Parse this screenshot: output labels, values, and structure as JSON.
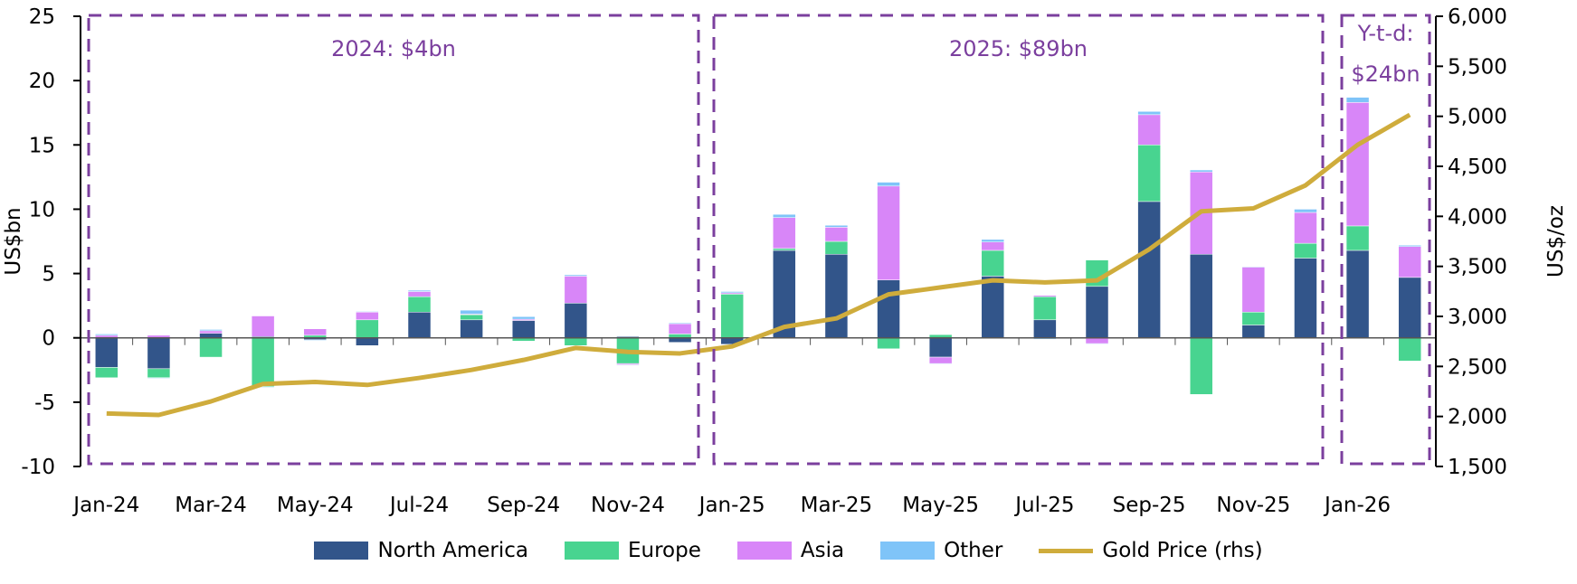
{
  "chart_data": {
    "type": "bar",
    "stacked": true,
    "categories": [
      "Jan-24",
      "Feb-24",
      "Mar-24",
      "Apr-24",
      "May-24",
      "Jun-24",
      "Jul-24",
      "Aug-24",
      "Sep-24",
      "Oct-24",
      "Nov-24",
      "Dec-24",
      "Jan-25",
      "Feb-25",
      "Mar-25",
      "Apr-25",
      "May-25",
      "Jun-25",
      "Jul-25",
      "Aug-25",
      "Sep-25",
      "Oct-25",
      "Nov-25",
      "Dec-25",
      "Jan-26",
      "Feb-26"
    ],
    "x_tick_labels": [
      "Jan-24",
      "Mar-24",
      "May-24",
      "Jul-24",
      "Sep-24",
      "Nov-24",
      "Jan-25",
      "Mar-25",
      "May-25",
      "Jul-25",
      "Sep-25",
      "Nov-25",
      "Jan-26"
    ],
    "series": [
      {
        "name": "North America",
        "color": "#32558a",
        "axis": "left",
        "values": [
          -2.3,
          -2.4,
          0.35,
          0.1,
          -0.15,
          -0.6,
          2.0,
          1.4,
          1.35,
          2.7,
          0.1,
          -0.35,
          -0.5,
          6.8,
          6.5,
          4.5,
          -1.5,
          4.8,
          1.4,
          4.0,
          10.6,
          6.5,
          1.0,
          6.2,
          6.8,
          4.7
        ]
      },
      {
        "name": "Europe",
        "color": "#48d490",
        "axis": "left",
        "values": [
          -0.8,
          -0.7,
          -1.5,
          -3.8,
          0.2,
          1.4,
          1.2,
          0.4,
          -0.25,
          -0.6,
          -2.0,
          0.3,
          3.4,
          0.15,
          1.0,
          -0.85,
          0.25,
          2.0,
          1.8,
          2.05,
          4.4,
          -4.4,
          1.0,
          1.15,
          1.9,
          -1.8
        ]
      },
      {
        "name": "Asia",
        "color": "#d886f8",
        "axis": "left",
        "values": [
          0.2,
          0.2,
          0.2,
          1.6,
          0.5,
          0.6,
          0.4,
          0.05,
          0.1,
          2.1,
          -0.1,
          0.8,
          0.1,
          2.4,
          1.1,
          7.3,
          -0.5,
          0.65,
          0.1,
          -0.45,
          2.35,
          6.4,
          3.5,
          2.4,
          9.6,
          2.4
        ]
      },
      {
        "name": "Other",
        "color": "#7fc4f8",
        "axis": "left",
        "values": [
          0.1,
          -0.05,
          0.1,
          -0.05,
          -0.05,
          0.05,
          0.1,
          0.3,
          0.2,
          0.1,
          -0.05,
          0.07,
          0.1,
          0.25,
          0.15,
          0.3,
          -0.05,
          0.2,
          -0.1,
          -0.05,
          0.25,
          0.15,
          0.05,
          0.25,
          0.4,
          0.1
        ]
      },
      {
        "name": "Gold Price (rhs)",
        "type": "line",
        "color": "#cfac3c",
        "axis": "right",
        "values": [
          2030,
          2015,
          2150,
          2325,
          2345,
          2315,
          2385,
          2465,
          2565,
          2685,
          2645,
          2630,
          2700,
          2895,
          2980,
          3220,
          3290,
          3360,
          3340,
          3360,
          3670,
          4050,
          4080,
          4310,
          4715,
          5015
        ]
      }
    ],
    "ylabel": "US$bn",
    "ylabel_right": "US$/oz",
    "ylim": [
      -10,
      25
    ],
    "ylim_right": [
      1500,
      6000
    ],
    "y_ticks": [
      "-10",
      "-5",
      "0",
      "5",
      "10",
      "15",
      "20",
      "25"
    ],
    "y_ticks_right": [
      "1,500",
      "2,000",
      "2,500",
      "3,000",
      "3,500",
      "4,000",
      "4,500",
      "5,000",
      "5,500",
      "6,000"
    ],
    "annotations": [
      {
        "text": "2024: $4bn",
        "range": [
          "Jan-24",
          "Dec-24"
        ]
      },
      {
        "text": "2025: $89bn",
        "range": [
          "Jan-25",
          "Dec-25"
        ]
      },
      {
        "text": "Y-t-d:",
        "text2": "$24bn",
        "range": [
          "Jan-26",
          "Feb-26"
        ]
      }
    ],
    "annotation_color": "#7b3f9e",
    "grid": false,
    "legend_position": "bottom"
  }
}
